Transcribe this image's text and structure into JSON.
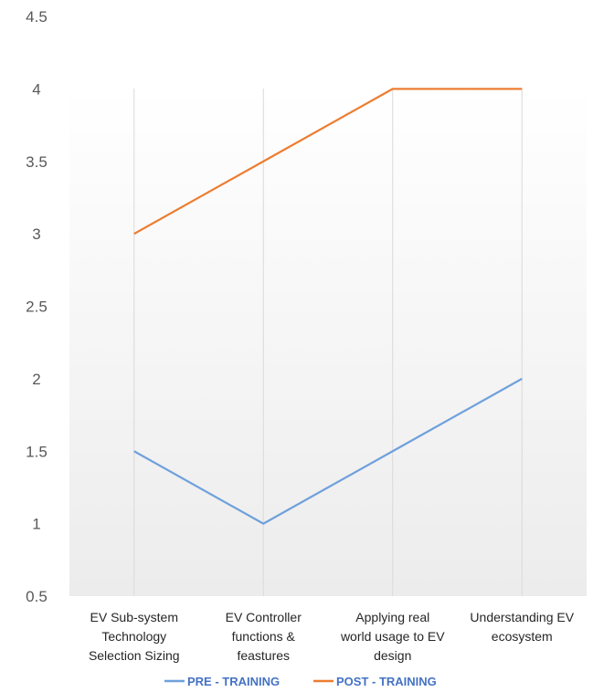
{
  "chart_data": {
    "type": "line",
    "categories": [
      [
        "EV Sub-system",
        "Technology",
        "Selection  Sizing"
      ],
      [
        "EV Controller",
        "functions &",
        "feastures"
      ],
      [
        "Applying  real",
        "world usage to EV",
        "design"
      ],
      [
        "Understanding  EV",
        "ecosystem"
      ]
    ],
    "series": [
      {
        "name": "PRE - TRAINING",
        "values": [
          1.5,
          1.0,
          1.5,
          2.0
        ],
        "color": "#6fa0dc"
      },
      {
        "name": "POST - TRAINING",
        "values": [
          3.0,
          3.5,
          4.0,
          4.0
        ],
        "color": "#ed7d31"
      }
    ],
    "ylim": [
      0.5,
      4.5
    ],
    "yticks": [
      "4.5",
      "4",
      "3.5",
      "3",
      "2.5",
      "2",
      "1.5",
      "1",
      "0.5"
    ],
    "grid": "vertical",
    "legend_position": "bottom",
    "title": "",
    "xlabel": "",
    "ylabel": ""
  }
}
